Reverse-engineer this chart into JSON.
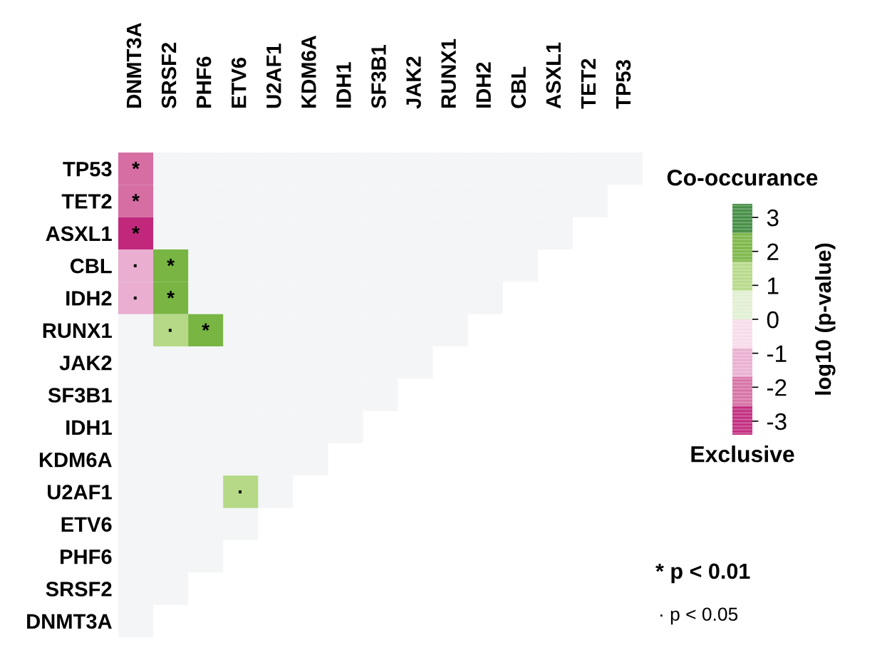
{
  "chart_data": {
    "type": "heatmap",
    "categories": [
      "DNMT3A",
      "SRSF2",
      "PHF6",
      "ETV6",
      "U2AF1",
      "KDM6A",
      "IDH1",
      "SF3B1",
      "JAK2",
      "RUNX1",
      "IDH2",
      "CBL",
      "ASXL1",
      "TET2",
      "TP53"
    ],
    "y_categories": [
      "TP53",
      "TET2",
      "ASXL1",
      "CBL",
      "IDH2",
      "RUNX1",
      "JAK2",
      "SF3B1",
      "IDH1",
      "KDM6A",
      "U2AF1",
      "ETV6",
      "PHF6",
      "SRSF2",
      "DNMT3A"
    ],
    "cells": [
      [
        -2.1,
        null,
        null,
        null,
        null,
        null,
        null,
        null,
        null,
        null,
        null,
        null,
        null,
        null,
        null
      ],
      [
        -2.1,
        null,
        null,
        null,
        null,
        null,
        null,
        null,
        null,
        null,
        null,
        null,
        null,
        null,
        null
      ],
      [
        -3.0,
        null,
        null,
        null,
        null,
        null,
        null,
        null,
        null,
        null,
        null,
        null,
        null,
        null,
        null
      ],
      [
        -1.3,
        2.1,
        null,
        null,
        null,
        null,
        null,
        null,
        null,
        null,
        null,
        null,
        null,
        null,
        null
      ],
      [
        -1.3,
        2.1,
        null,
        null,
        null,
        null,
        null,
        null,
        null,
        null,
        null,
        null,
        null,
        null,
        null
      ],
      [
        null,
        1.3,
        2.1,
        null,
        null,
        null,
        null,
        null,
        null,
        null,
        null,
        null,
        null,
        null,
        null
      ],
      [
        null,
        null,
        null,
        null,
        null,
        null,
        null,
        null,
        null,
        null,
        null,
        null,
        null,
        null,
        null
      ],
      [
        null,
        null,
        null,
        null,
        null,
        null,
        null,
        null,
        null,
        null,
        null,
        null,
        null,
        null,
        null
      ],
      [
        null,
        null,
        null,
        null,
        null,
        null,
        null,
        null,
        null,
        null,
        null,
        null,
        null,
        null,
        null
      ],
      [
        null,
        null,
        null,
        null,
        null,
        null,
        null,
        null,
        null,
        null,
        null,
        null,
        null,
        null,
        null
      ],
      [
        null,
        null,
        null,
        1.3,
        null,
        null,
        null,
        null,
        null,
        null,
        null,
        null,
        null,
        null,
        null
      ],
      [
        null,
        null,
        null,
        null,
        null,
        null,
        null,
        null,
        null,
        null,
        null,
        null,
        null,
        null,
        null
      ],
      [
        null,
        null,
        null,
        null,
        null,
        null,
        null,
        null,
        null,
        null,
        null,
        null,
        null,
        null,
        null
      ],
      [
        null,
        null,
        null,
        null,
        null,
        null,
        null,
        null,
        null,
        null,
        null,
        null,
        null,
        null,
        null
      ],
      [
        null,
        null,
        null,
        null,
        null,
        null,
        null,
        null,
        null,
        null,
        null,
        null,
        null,
        null,
        null
      ]
    ],
    "cell_labels": [
      [
        "*",
        null,
        null,
        null,
        null,
        null,
        null,
        null,
        null,
        null,
        null,
        null,
        null,
        null,
        null
      ],
      [
        "*",
        null,
        null,
        null,
        null,
        null,
        null,
        null,
        null,
        null,
        null,
        null,
        null,
        null,
        null
      ],
      [
        "*",
        null,
        null,
        null,
        null,
        null,
        null,
        null,
        null,
        null,
        null,
        null,
        null,
        null,
        null
      ],
      [
        "·",
        "*",
        null,
        null,
        null,
        null,
        null,
        null,
        null,
        null,
        null,
        null,
        null,
        null,
        null
      ],
      [
        "·",
        "*",
        null,
        null,
        null,
        null,
        null,
        null,
        null,
        null,
        null,
        null,
        null,
        null,
        null
      ],
      [
        null,
        "·",
        "*",
        null,
        null,
        null,
        null,
        null,
        null,
        null,
        null,
        null,
        null,
        null,
        null
      ],
      [
        null,
        null,
        null,
        null,
        null,
        null,
        null,
        null,
        null,
        null,
        null,
        null,
        null,
        null,
        null
      ],
      [
        null,
        null,
        null,
        null,
        null,
        null,
        null,
        null,
        null,
        null,
        null,
        null,
        null,
        null,
        null
      ],
      [
        null,
        null,
        null,
        null,
        null,
        null,
        null,
        null,
        null,
        null,
        null,
        null,
        null,
        null,
        null
      ],
      [
        null,
        null,
        null,
        null,
        null,
        null,
        null,
        null,
        null,
        null,
        null,
        null,
        null,
        null,
        null
      ],
      [
        null,
        null,
        null,
        "·",
        null,
        null,
        null,
        null,
        null,
        null,
        null,
        null,
        null,
        null,
        null
      ],
      [
        null,
        null,
        null,
        null,
        null,
        null,
        null,
        null,
        null,
        null,
        null,
        null,
        null,
        null,
        null
      ],
      [
        null,
        null,
        null,
        null,
        null,
        null,
        null,
        null,
        null,
        null,
        null,
        null,
        null,
        null,
        null
      ],
      [
        null,
        null,
        null,
        null,
        null,
        null,
        null,
        null,
        null,
        null,
        null,
        null,
        null,
        null,
        null
      ],
      [
        null,
        null,
        null,
        null,
        null,
        null,
        null,
        null,
        null,
        null,
        null,
        null,
        null,
        null,
        null
      ]
    ],
    "colors": [
      "#c1287c",
      "#d66ea3",
      "#e9aed0",
      "#f8dbe9",
      "#e0efd2",
      "#b5d986",
      "#79b543",
      "#3f8a3f"
    ],
    "clim": [
      -3.4,
      3.4
    ],
    "cticks": [
      -3,
      -2,
      -1,
      0,
      1,
      2,
      3
    ],
    "clabel": "log10 (p-value)",
    "annotations": [
      "Co-occurance",
      "Exclusive",
      "* p < 0.01",
      "· p < 0.05"
    ]
  }
}
